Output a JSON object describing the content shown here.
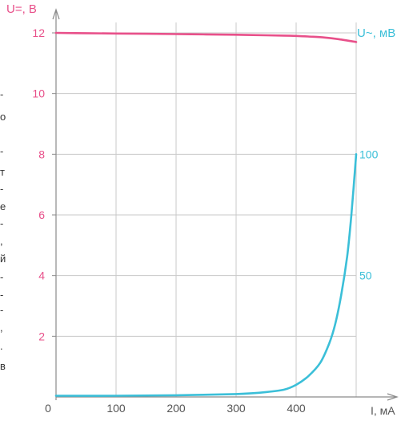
{
  "chart_data": {
    "type": "line",
    "x_axis": {
      "label": "I, мА",
      "ticks": [
        0,
        100,
        200,
        300,
        400
      ],
      "range": [
        0,
        500
      ]
    },
    "y_left": {
      "label": "U=, В",
      "ticks": [
        2,
        4,
        6,
        8,
        10,
        12
      ],
      "range": [
        0,
        13
      ],
      "color": "#e8508a"
    },
    "y_right": {
      "label": "U~, мВ",
      "ticks": [
        50,
        100
      ],
      "range": [
        0,
        162.5
      ],
      "color": "#3bbfd8"
    },
    "grid": true,
    "series": [
      {
        "name": "U=",
        "axis": "left",
        "color": "#e8508a",
        "x": [
          0,
          50,
          100,
          150,
          200,
          250,
          300,
          350,
          380,
          400,
          420,
          440,
          460,
          475,
          500
        ],
        "y": [
          12.0,
          11.99,
          11.98,
          11.97,
          11.96,
          11.95,
          11.94,
          11.92,
          11.91,
          11.9,
          11.88,
          11.86,
          11.82,
          11.78,
          11.7
        ]
      },
      {
        "name": "U~",
        "axis": "right",
        "color": "#3bbfd8",
        "x": [
          0,
          100,
          200,
          300,
          350,
          380,
          400,
          420,
          440,
          455,
          465,
          475,
          485,
          492,
          500
        ],
        "y": [
          0.5,
          0.5,
          0.7,
          1.2,
          2.0,
          3.0,
          5.0,
          8.5,
          14.0,
          22.0,
          30.0,
          42.0,
          58.0,
          75.0,
          100.0
        ]
      }
    ],
    "margin_text": [
      "-",
      "о",
      "-",
      "т",
      "-",
      "е",
      "-",
      ",",
      "й",
      "-",
      "-",
      "-",
      ",",
      ".",
      "в"
    ]
  }
}
